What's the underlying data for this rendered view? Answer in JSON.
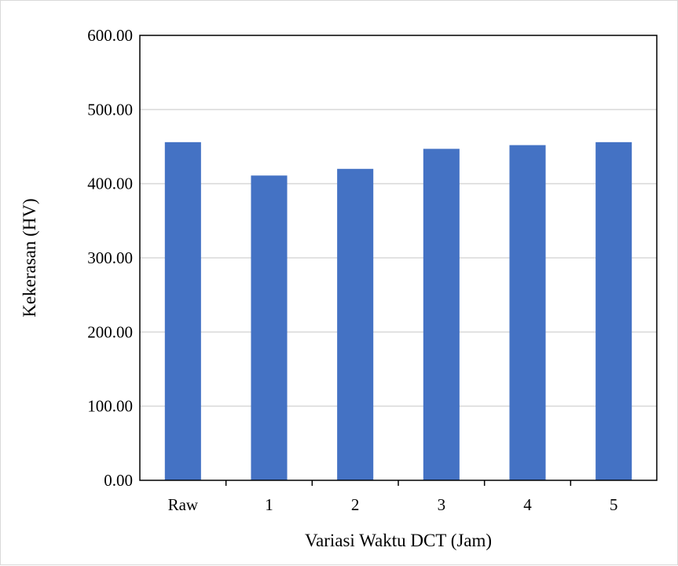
{
  "chart_data": {
    "type": "bar",
    "title": "",
    "xlabel": "Variasi Waktu DCT (Jam)",
    "ylabel": "Kekerasan (HV)",
    "categories": [
      "Raw",
      "1",
      "2",
      "3",
      "4",
      "5"
    ],
    "values": [
      456,
      411,
      420,
      447,
      452,
      456
    ],
    "ylim": [
      0,
      600
    ],
    "yticks": [
      "0.00",
      "100.00",
      "200.00",
      "300.00",
      "400.00",
      "500.00",
      "600.00"
    ],
    "ytick_values": [
      0,
      100,
      200,
      300,
      400,
      500,
      600
    ],
    "grid": true,
    "legend": "none",
    "bar_color": "#4472c4",
    "grid_color": "#d9d9d9"
  }
}
